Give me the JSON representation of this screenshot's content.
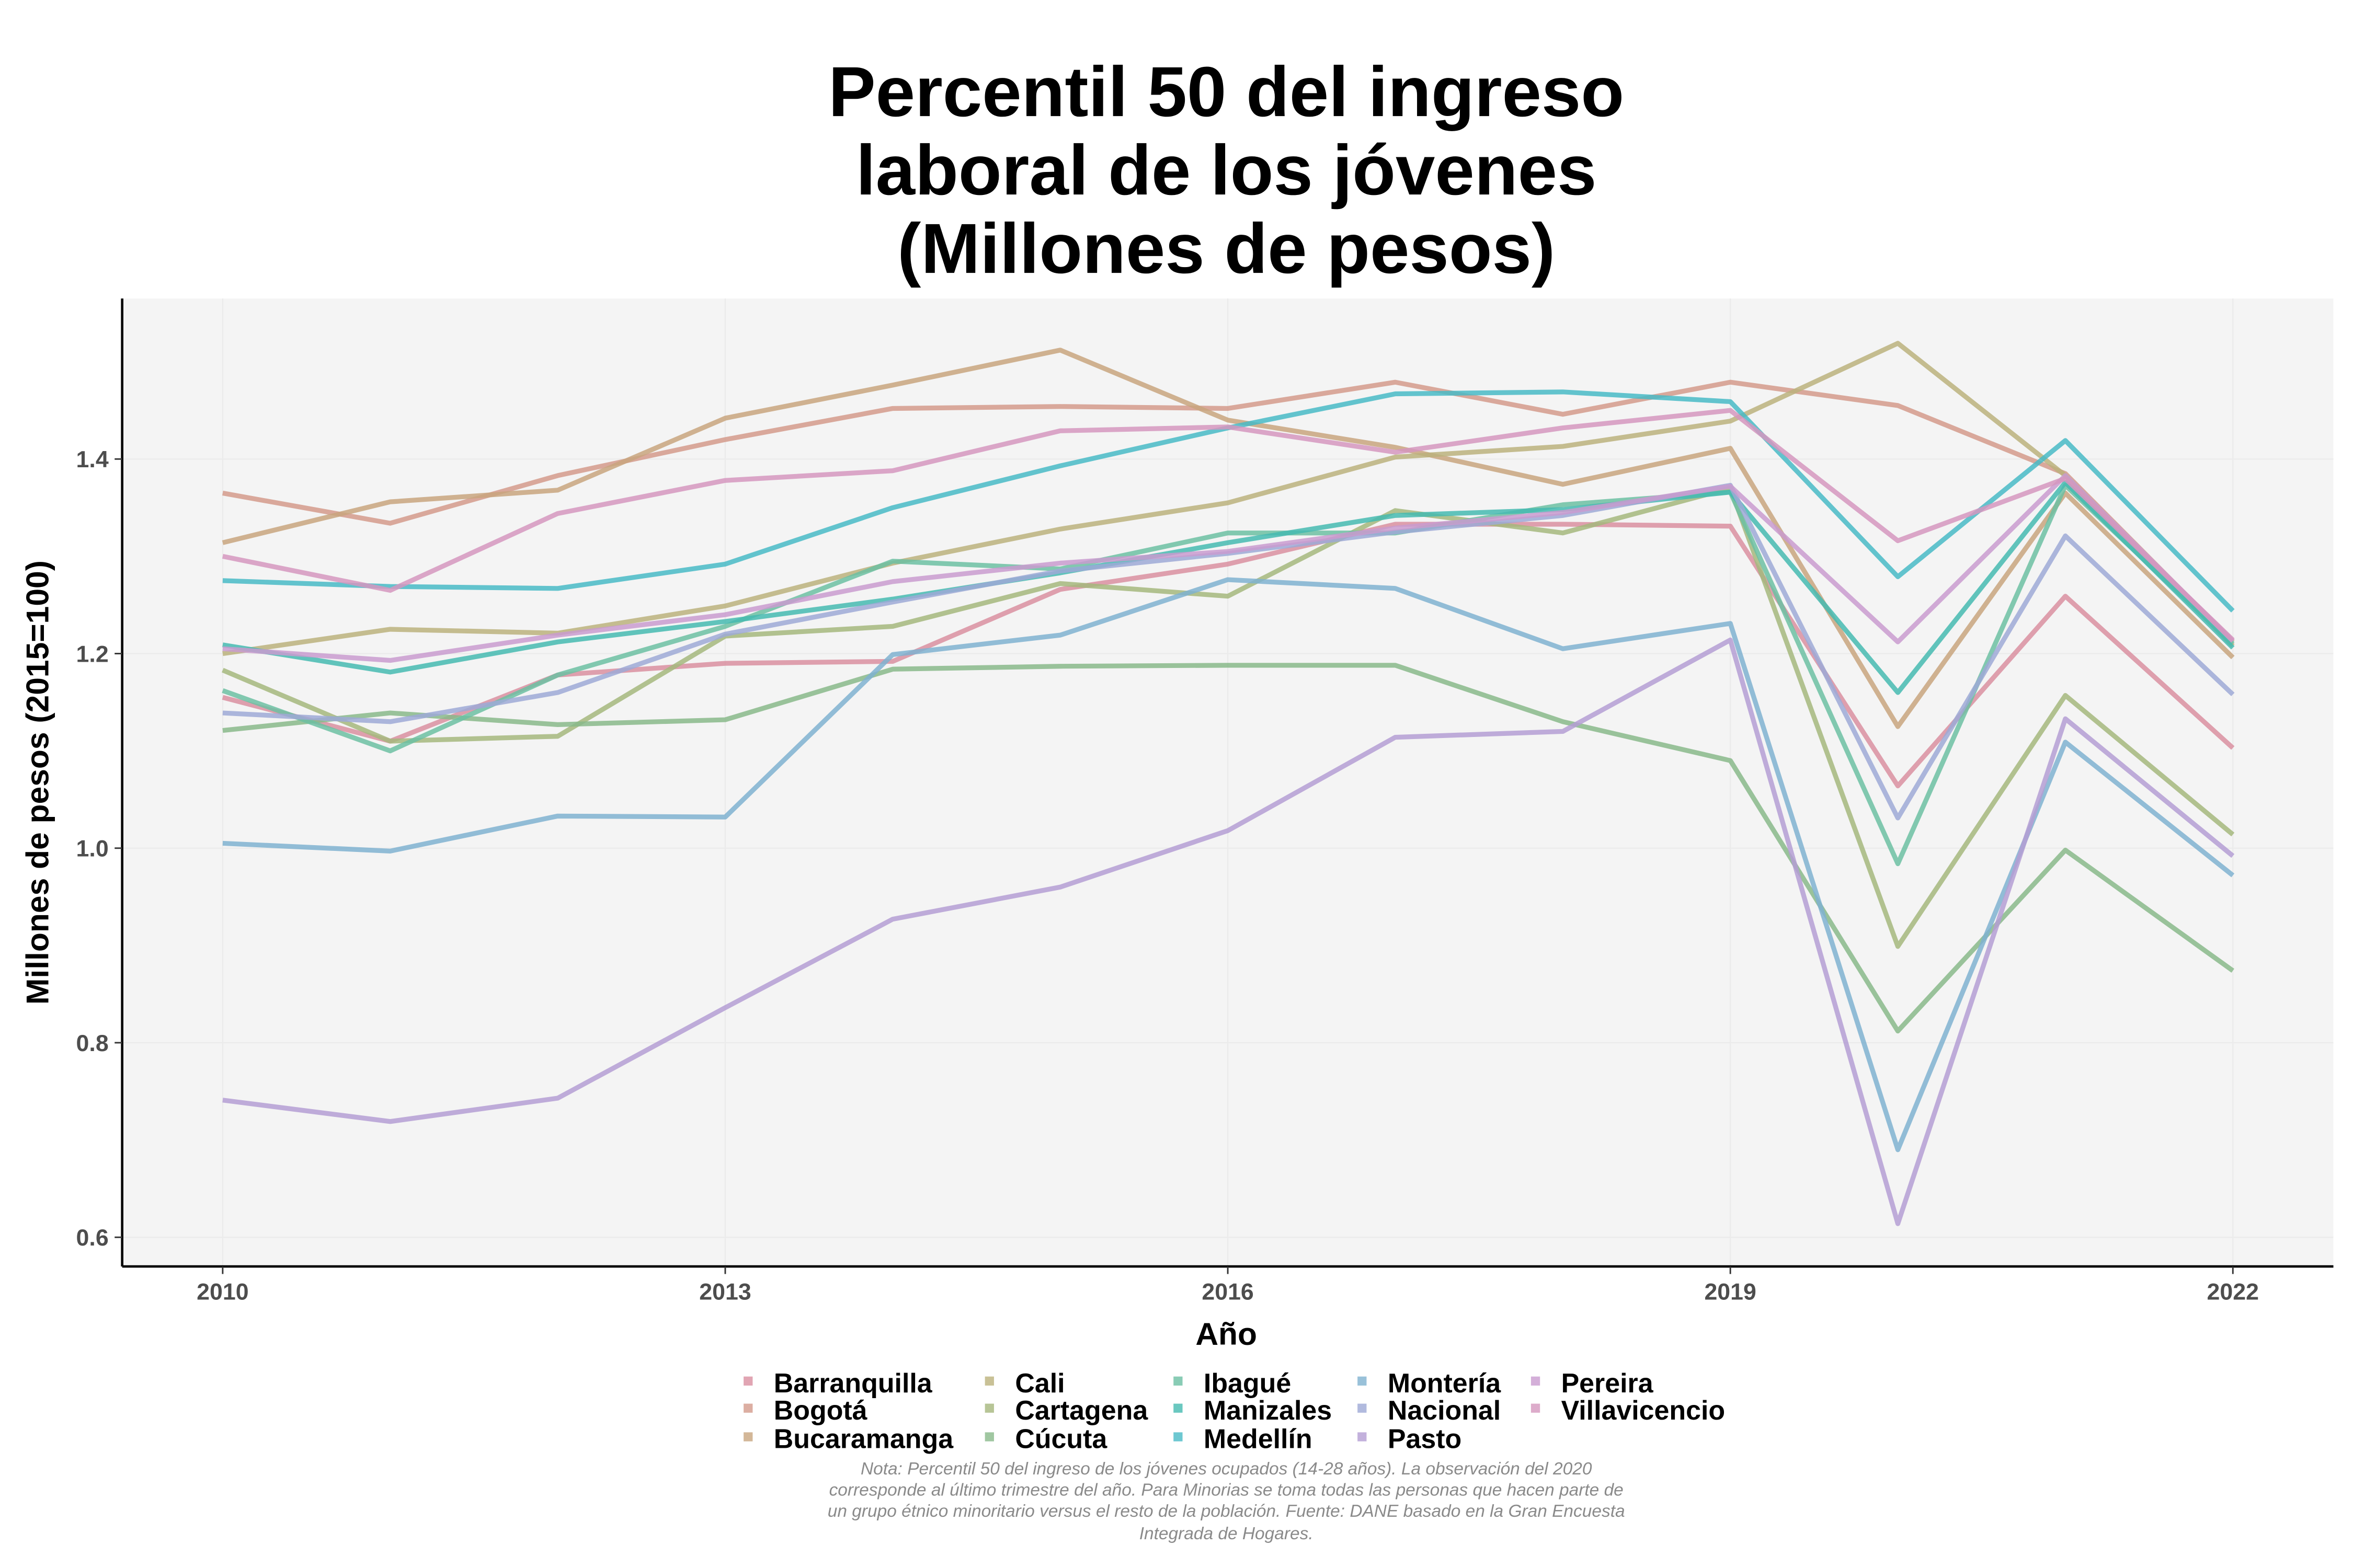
{
  "chart_data": {
    "type": "line",
    "title": [
      "Percentil 50 del ingreso",
      "laboral de los jóvenes",
      "(Millones de pesos)"
    ],
    "xlabel": "Año",
    "ylabel": "Millones de pesos (2015=100)",
    "x": [
      2010,
      2011,
      2012,
      2013,
      2014,
      2015,
      2016,
      2017,
      2018,
      2019,
      2020,
      2021,
      2022
    ],
    "xticks": [
      "2010",
      "2013",
      "2016",
      "2019",
      "2022"
    ],
    "xtick_values": [
      2010,
      2013,
      2016,
      2019,
      2022
    ],
    "yticks": [
      "0.6",
      "0.8",
      "1.0",
      "1.2",
      "1.4"
    ],
    "ytick_values": [
      0.6,
      0.8,
      1.0,
      1.2,
      1.4
    ],
    "xlim": [
      2009.4,
      2022.6
    ],
    "ylim": [
      0.57,
      1.565
    ],
    "grid": true,
    "legend_position": "bottom",
    "series": [
      {
        "name": "Barranquilla",
        "color": "#D98FA0",
        "values": [
          1.155,
          1.11,
          1.178,
          1.19,
          1.192,
          1.266,
          1.292,
          1.333,
          1.333,
          1.331,
          1.064,
          1.259,
          1.103
        ]
      },
      {
        "name": "Bogotá",
        "color": "#D39A8B",
        "values": [
          1.365,
          1.334,
          1.383,
          1.42,
          1.452,
          1.454,
          1.452,
          1.479,
          1.446,
          1.479,
          1.455,
          1.385,
          1.212
        ]
      },
      {
        "name": "Bucaramanga",
        "color": "#C8A57E",
        "values": [
          1.314,
          1.356,
          1.368,
          1.442,
          1.476,
          1.512,
          1.44,
          1.412,
          1.374,
          1.411,
          1.125,
          1.365,
          1.196
        ]
      },
      {
        "name": "Cali",
        "color": "#BBB17C",
        "values": [
          1.2,
          1.225,
          1.221,
          1.249,
          1.293,
          1.328,
          1.355,
          1.402,
          1.413,
          1.439,
          1.519,
          1.383,
          1.208
        ]
      },
      {
        "name": "Cartagena",
        "color": "#A5B77C",
        "values": [
          1.183,
          1.11,
          1.115,
          1.218,
          1.228,
          1.272,
          1.259,
          1.347,
          1.324,
          1.37,
          0.899,
          1.157,
          1.014
        ]
      },
      {
        "name": "Cúcuta",
        "color": "#88B98A",
        "values": [
          1.121,
          1.139,
          1.127,
          1.132,
          1.184,
          1.187,
          1.188,
          1.188,
          1.13,
          1.09,
          0.812,
          0.998,
          0.874
        ]
      },
      {
        "name": "Ibagué",
        "color": "#6CBFA2",
        "values": [
          1.162,
          1.1,
          1.178,
          1.228,
          1.295,
          1.287,
          1.324,
          1.324,
          1.353,
          1.366,
          0.984,
          1.373,
          1.21
        ]
      },
      {
        "name": "Manizales",
        "color": "#45BAB0",
        "values": [
          1.209,
          1.181,
          1.212,
          1.233,
          1.256,
          1.283,
          1.314,
          1.342,
          1.348,
          1.366,
          1.16,
          1.376,
          1.206
        ]
      },
      {
        "name": "Medellín",
        "color": "#48BAC6",
        "values": [
          1.275,
          1.269,
          1.267,
          1.292,
          1.35,
          1.393,
          1.432,
          1.467,
          1.469,
          1.459,
          1.279,
          1.419,
          1.244
        ]
      },
      {
        "name": "Montería",
        "color": "#7FB2D0",
        "values": [
          1.005,
          0.997,
          1.033,
          1.032,
          1.199,
          1.219,
          1.276,
          1.267,
          1.205,
          1.231,
          0.69,
          1.109,
          0.972
        ]
      },
      {
        "name": "Nacional",
        "color": "#9DA9D6",
        "values": [
          1.139,
          1.13,
          1.16,
          1.22,
          1.253,
          1.285,
          1.303,
          1.325,
          1.342,
          1.373,
          1.031,
          1.321,
          1.158
        ]
      },
      {
        "name": "Pasto",
        "color": "#B49DD3",
        "values": [
          0.741,
          0.719,
          0.743,
          0.836,
          0.927,
          0.96,
          1.018,
          1.114,
          1.12,
          1.214,
          0.614,
          1.133,
          0.992
        ]
      },
      {
        "name": "Pereira",
        "color": "#C99BCF",
        "values": [
          1.205,
          1.193,
          1.219,
          1.24,
          1.274,
          1.293,
          1.305,
          1.329,
          1.345,
          1.372,
          1.212,
          1.383,
          1.213
        ]
      },
      {
        "name": "Villavicencio",
        "color": "#D597BE",
        "values": [
          1.3,
          1.265,
          1.344,
          1.378,
          1.388,
          1.429,
          1.433,
          1.407,
          1.432,
          1.45,
          1.316,
          1.38,
          1.214
        ]
      }
    ],
    "note": [
      "Nota: Percentil 50 del ingreso de los jóvenes ocupados (14-28 años). La observación del 2020",
      "corresponde al último trimestre del año. Para Minorias se toma todas las personas que hacen parte de",
      "un grupo étnico minoritario versus el resto de la población. Fuente: DANE basado en la Gran Encuesta",
      "Integrada de Hogares."
    ]
  }
}
